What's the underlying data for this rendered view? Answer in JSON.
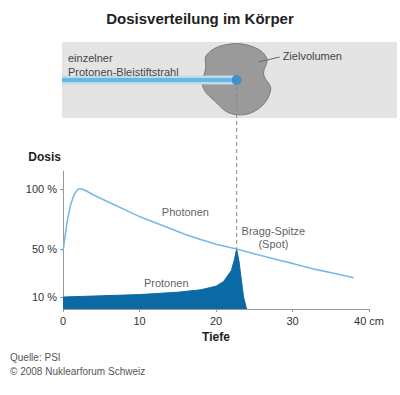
{
  "chart_data": {
    "type": "line",
    "title": "Dosisverteilung im Körper",
    "x_label": "Tiefe",
    "y_label": "Dosis",
    "xlim": [
      0,
      40
    ],
    "xticks": [
      0,
      10,
      20,
      30,
      {
        "value": 40,
        "label": "40 cm"
      }
    ],
    "ylim": [
      0,
      115
    ],
    "yticks": [
      {
        "value": 10,
        "label": "10 %"
      },
      {
        "value": 50,
        "label": "50 %"
      },
      {
        "value": 100,
        "label": "100 %"
      }
    ],
    "grid": false,
    "legend": false,
    "series": [
      {
        "name": "Photonen",
        "type": "line",
        "color": "#7ab9e2",
        "x": [
          0,
          0.3,
          0.6,
          1,
          1.5,
          2,
          2.5,
          3,
          4,
          6,
          8,
          10,
          12,
          14,
          16,
          18,
          20,
          22.7,
          25,
          28,
          30,
          33,
          36,
          38
        ],
        "values": [
          48,
          62,
          75,
          87,
          96,
          100,
          100,
          98.5,
          95,
          89,
          83,
          77,
          72,
          67,
          62,
          58,
          54,
          50,
          46,
          41,
          38,
          33,
          29,
          26
        ]
      },
      {
        "name": "Protonen",
        "type": "area",
        "color": "#0b6aa6",
        "x": [
          0,
          5,
          10,
          15,
          18,
          20,
          21,
          22,
          22.4,
          22.7,
          23,
          23.3,
          23.6,
          24
        ],
        "values": [
          10,
          11,
          12,
          14,
          16,
          19,
          23,
          32,
          41,
          50,
          40,
          25,
          10,
          0
        ]
      }
    ],
    "annotations": [
      {
        "text": "Photonen",
        "x": 16,
        "y": 81
      },
      {
        "text": "Protonen",
        "x": 13.5,
        "y": 22
      },
      {
        "text": "Bragg-Spitze\n(Spot)",
        "x": 27.5,
        "y": 60
      }
    ],
    "illustration": {
      "beam_label": "einzelner\nProtonen-Bleistiftstrahl",
      "target_label": "Zielvolumen"
    },
    "source": "Quelle: PSI",
    "copyright": "© 2008 Nuklearforum Schweiz"
  }
}
